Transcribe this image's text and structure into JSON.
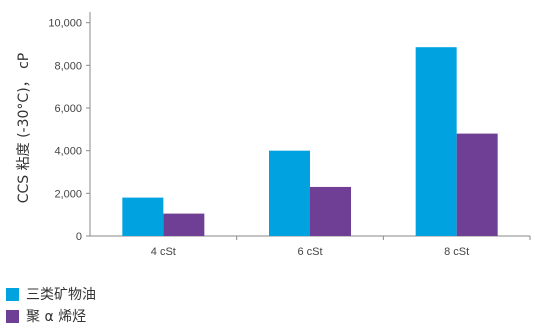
{
  "chart_data": {
    "type": "bar",
    "ylabel": "CCS 粘度 (-30°C)， cP",
    "xlabel": "",
    "categories": [
      "4 cSt",
      "6 cSt",
      "8 cSt"
    ],
    "series": [
      {
        "name": "三类矿物油",
        "color": "#00a3e0",
        "values": [
          1800,
          4000,
          8850
        ]
      },
      {
        "name": "聚 α 烯烃",
        "color": "#6f3f96",
        "values": [
          1050,
          2300,
          4800
        ]
      }
    ],
    "ylim": [
      0,
      10500
    ],
    "yticks": [
      "0",
      "2,000",
      "4,000",
      "6,000",
      "8,000",
      "10,000"
    ],
    "ytick_values": [
      0,
      2000,
      4000,
      6000,
      8000,
      10000
    ],
    "grid": false,
    "legend_position": "bottom-left"
  }
}
